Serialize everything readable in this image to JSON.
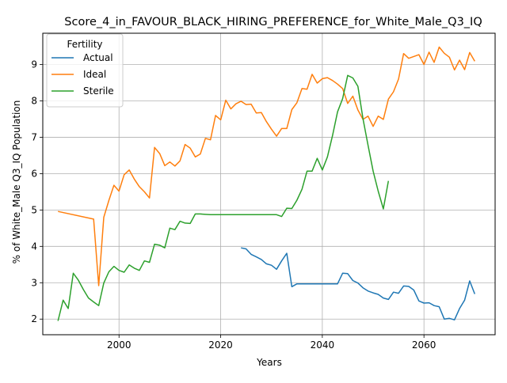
{
  "chart_data": {
    "type": "line",
    "title": "Score_4_in_FAVOUR_BLACK_HIRING_PREFERENCE_for_White_Male_Q3_IQ",
    "xlabel": "Years",
    "ylabel": "% of White_Male Q3_IQ Population",
    "xlim": [
      1985,
      2074
    ],
    "ylim": [
      1.57,
      9.86
    ],
    "x_ticks": [
      2000,
      2020,
      2040,
      2060
    ],
    "y_ticks": [
      2,
      3,
      4,
      5,
      6,
      7,
      8,
      9
    ],
    "grid": true,
    "legend": {
      "title": "Fertility",
      "placement": "top-left"
    },
    "series": [
      {
        "name": "Actual",
        "color": "#1f77b4",
        "x": [
          2024,
          2025,
          2026,
          2027,
          2028,
          2029,
          2030,
          2031,
          2032,
          2033,
          2034,
          2035,
          2036,
          2037,
          2038,
          2039,
          2040,
          2041,
          2042,
          2043,
          2044,
          2045,
          2046,
          2047,
          2048,
          2049,
          2050,
          2051,
          2052,
          2053,
          2054,
          2055,
          2056,
          2057,
          2058,
          2059,
          2060,
          2061,
          2062,
          2063,
          2064,
          2065,
          2066,
          2067,
          2068,
          2069,
          2070
        ],
        "values": [
          3.96,
          3.93,
          3.78,
          3.71,
          3.64,
          3.52,
          3.48,
          3.37,
          3.6,
          3.81,
          2.89,
          2.97,
          2.97,
          2.97,
          2.97,
          2.97,
          2.97,
          2.97,
          2.97,
          2.97,
          3.26,
          3.25,
          3.06,
          2.99,
          2.86,
          2.77,
          2.72,
          2.68,
          2.58,
          2.54,
          2.74,
          2.71,
          2.91,
          2.9,
          2.8,
          2.5,
          2.44,
          2.45,
          2.37,
          2.34,
          2.0,
          2.02,
          1.98,
          2.29,
          2.52,
          3.05,
          2.69
        ]
      },
      {
        "name": "Ideal",
        "color": "#ff7f0e",
        "x": [
          1988,
          1995,
          1996,
          1997,
          1998,
          1999,
          2000,
          2001,
          2002,
          2003,
          2004,
          2005,
          2006,
          2007,
          2008,
          2009,
          2010,
          2011,
          2012,
          2013,
          2014,
          2015,
          2016,
          2017,
          2018,
          2019,
          2020,
          2021,
          2022,
          2023,
          2024,
          2025,
          2026,
          2027,
          2028,
          2029,
          2030,
          2031,
          2032,
          2033,
          2034,
          2035,
          2036,
          2037,
          2038,
          2039,
          2040,
          2041,
          2042,
          2043,
          2044,
          2045,
          2046,
          2047,
          2048,
          2049,
          2050,
          2051,
          2052,
          2053,
          2054,
          2055,
          2056,
          2057,
          2058,
          2059,
          2060,
          2061,
          2062,
          2063,
          2064,
          2065,
          2066,
          2067,
          2068,
          2069,
          2070
        ],
        "values": [
          4.96,
          4.75,
          2.92,
          4.8,
          5.26,
          5.68,
          5.52,
          5.97,
          6.1,
          5.85,
          5.64,
          5.5,
          5.33,
          6.72,
          6.55,
          6.22,
          6.32,
          6.21,
          6.35,
          6.8,
          6.7,
          6.46,
          6.54,
          6.97,
          6.93,
          7.6,
          7.48,
          8.02,
          7.78,
          7.92,
          7.99,
          7.9,
          7.91,
          7.67,
          7.68,
          7.43,
          7.22,
          7.03,
          7.24,
          7.24,
          7.76,
          7.95,
          8.34,
          8.32,
          8.73,
          8.49,
          8.61,
          8.64,
          8.56,
          8.46,
          8.34,
          7.93,
          8.13,
          7.75,
          7.49,
          7.58,
          7.3,
          7.58,
          7.49,
          8.05,
          8.25,
          8.6,
          9.3,
          9.17,
          9.22,
          9.27,
          9.0,
          9.34,
          9.06,
          9.48,
          9.31,
          9.2,
          8.85,
          9.12,
          8.86,
          9.33,
          9.09
        ]
      },
      {
        "name": "Sterile",
        "color": "#2ca02c",
        "x": [
          1988,
          1989,
          1990,
          1991,
          1992,
          1993,
          1994,
          1995,
          1996,
          1997,
          1998,
          1999,
          2000,
          2001,
          2002,
          2003,
          2004,
          2005,
          2006,
          2007,
          2008,
          2009,
          2010,
          2011,
          2012,
          2013,
          2014,
          2015,
          2016,
          2017,
          2018,
          2019,
          2020,
          2021,
          2022,
          2023,
          2024,
          2025,
          2026,
          2027,
          2028,
          2029,
          2030,
          2031,
          2032,
          2033,
          2034,
          2035,
          2036,
          2037,
          2038,
          2039,
          2040,
          2041,
          2042,
          2043,
          2044,
          2045,
          2046,
          2047,
          2048,
          2049,
          2050,
          2051,
          2052,
          2053
        ],
        "values": [
          1.95,
          2.52,
          2.29,
          3.26,
          3.07,
          2.81,
          2.58,
          2.47,
          2.37,
          2.99,
          3.3,
          3.45,
          3.34,
          3.29,
          3.49,
          3.4,
          3.34,
          3.6,
          3.56,
          4.06,
          4.03,
          3.96,
          4.5,
          4.46,
          4.69,
          4.64,
          4.63,
          4.89,
          4.89,
          4.88,
          4.87,
          4.87,
          4.87,
          4.87,
          4.87,
          4.87,
          4.87,
          4.87,
          4.87,
          4.87,
          4.87,
          4.87,
          4.87,
          4.87,
          4.82,
          5.05,
          5.04,
          5.27,
          5.57,
          6.07,
          6.07,
          6.42,
          6.1,
          6.46,
          7.04,
          7.7,
          8.06,
          8.7,
          8.63,
          8.4,
          7.51,
          6.78,
          6.07,
          5.52,
          5.03,
          5.8
        ]
      }
    ]
  }
}
